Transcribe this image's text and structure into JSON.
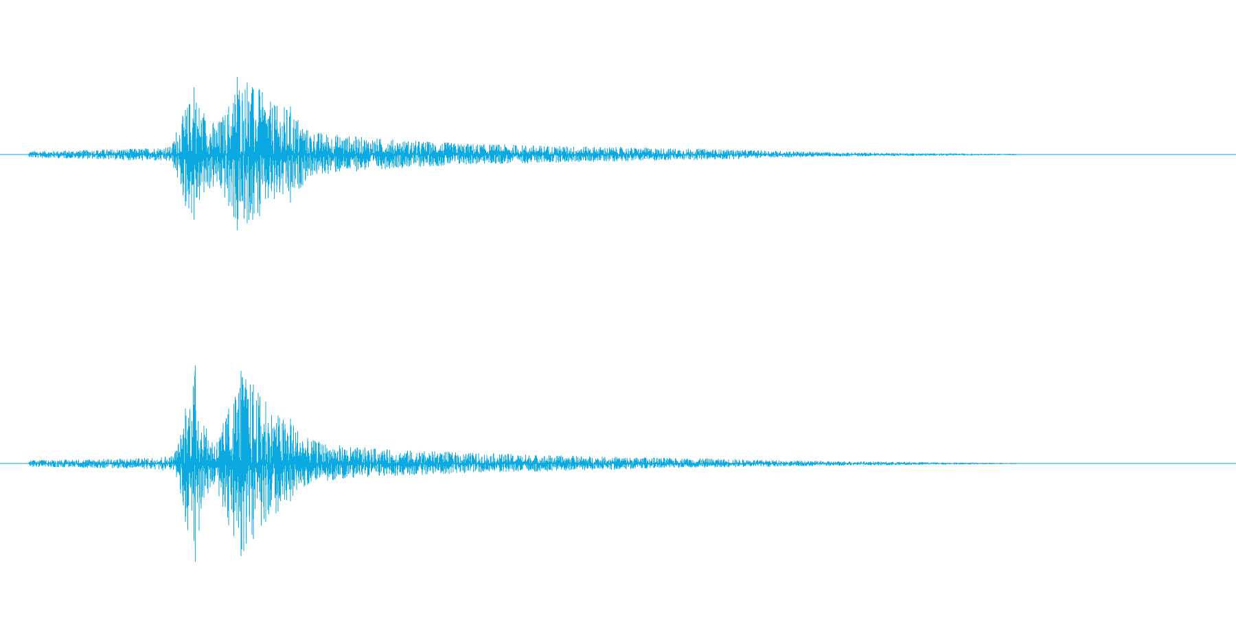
{
  "waveform": {
    "color": "#0aa9e1",
    "channels": [
      {
        "name": "channel-1",
        "envelope": [
          {
            "t": 0.0,
            "pos": 0.0,
            "neg": 0.0
          },
          {
            "t": 0.023,
            "pos": 0.0,
            "neg": 0.0
          },
          {
            "t": 0.024,
            "pos": 0.05,
            "neg": 0.05
          },
          {
            "t": 0.06,
            "pos": 0.06,
            "neg": 0.06
          },
          {
            "t": 0.09,
            "pos": 0.08,
            "neg": 0.08
          },
          {
            "t": 0.115,
            "pos": 0.09,
            "neg": 0.09
          },
          {
            "t": 0.139,
            "pos": 0.12,
            "neg": 0.11
          },
          {
            "t": 0.142,
            "pos": 0.35,
            "neg": 0.3
          },
          {
            "t": 0.15,
            "pos": 0.65,
            "neg": 0.75
          },
          {
            "t": 0.157,
            "pos": 0.98,
            "neg": 0.95
          },
          {
            "t": 0.165,
            "pos": 0.6,
            "neg": 0.55
          },
          {
            "t": 0.175,
            "pos": 0.45,
            "neg": 0.5
          },
          {
            "t": 0.185,
            "pos": 0.7,
            "neg": 0.75
          },
          {
            "t": 0.192,
            "pos": 1.13,
            "neg": 1.1
          },
          {
            "t": 0.2,
            "pos": 1.05,
            "neg": 1.0
          },
          {
            "t": 0.21,
            "pos": 0.95,
            "neg": 0.9
          },
          {
            "t": 0.222,
            "pos": 0.72,
            "neg": 0.65
          },
          {
            "t": 0.235,
            "pos": 0.7,
            "neg": 0.7
          },
          {
            "t": 0.25,
            "pos": 0.35,
            "neg": 0.33
          },
          {
            "t": 0.28,
            "pos": 0.28,
            "neg": 0.26
          },
          {
            "t": 0.32,
            "pos": 0.22,
            "neg": 0.2
          },
          {
            "t": 0.38,
            "pos": 0.16,
            "neg": 0.15
          },
          {
            "t": 0.45,
            "pos": 0.13,
            "neg": 0.12
          },
          {
            "t": 0.52,
            "pos": 0.1,
            "neg": 0.09
          },
          {
            "t": 0.58,
            "pos": 0.08,
            "neg": 0.08
          },
          {
            "t": 0.62,
            "pos": 0.06,
            "neg": 0.05
          },
          {
            "t": 0.68,
            "pos": 0.03,
            "neg": 0.03
          },
          {
            "t": 0.75,
            "pos": 0.02,
            "neg": 0.02
          },
          {
            "t": 0.82,
            "pos": 0.01,
            "neg": 0.01
          },
          {
            "t": 0.83,
            "pos": 0.0,
            "neg": 0.0
          },
          {
            "t": 1.0,
            "pos": 0.0,
            "neg": 0.0
          }
        ]
      },
      {
        "name": "channel-2",
        "envelope": [
          {
            "t": 0.0,
            "pos": 0.0,
            "neg": 0.0
          },
          {
            "t": 0.023,
            "pos": 0.0,
            "neg": 0.0
          },
          {
            "t": 0.024,
            "pos": 0.05,
            "neg": 0.05
          },
          {
            "t": 0.06,
            "pos": 0.06,
            "neg": 0.06
          },
          {
            "t": 0.09,
            "pos": 0.07,
            "neg": 0.07
          },
          {
            "t": 0.115,
            "pos": 0.08,
            "neg": 0.08
          },
          {
            "t": 0.14,
            "pos": 0.12,
            "neg": 0.12
          },
          {
            "t": 0.145,
            "pos": 0.35,
            "neg": 0.35
          },
          {
            "t": 0.15,
            "pos": 0.8,
            "neg": 0.85
          },
          {
            "t": 0.158,
            "pos": 1.43,
            "neg": 1.43
          },
          {
            "t": 0.165,
            "pos": 0.55,
            "neg": 0.5
          },
          {
            "t": 0.175,
            "pos": 0.35,
            "neg": 0.4
          },
          {
            "t": 0.185,
            "pos": 0.8,
            "neg": 0.9
          },
          {
            "t": 0.195,
            "pos": 1.35,
            "neg": 1.35
          },
          {
            "t": 0.205,
            "pos": 1.15,
            "neg": 1.1
          },
          {
            "t": 0.215,
            "pos": 0.9,
            "neg": 0.85
          },
          {
            "t": 0.225,
            "pos": 0.7,
            "neg": 0.7
          },
          {
            "t": 0.235,
            "pos": 0.65,
            "neg": 0.55
          },
          {
            "t": 0.25,
            "pos": 0.35,
            "neg": 0.3
          },
          {
            "t": 0.28,
            "pos": 0.25,
            "neg": 0.22
          },
          {
            "t": 0.32,
            "pos": 0.2,
            "neg": 0.18
          },
          {
            "t": 0.38,
            "pos": 0.16,
            "neg": 0.14
          },
          {
            "t": 0.45,
            "pos": 0.12,
            "neg": 0.11
          },
          {
            "t": 0.52,
            "pos": 0.09,
            "neg": 0.08
          },
          {
            "t": 0.58,
            "pos": 0.07,
            "neg": 0.06
          },
          {
            "t": 0.65,
            "pos": 0.04,
            "neg": 0.04
          },
          {
            "t": 0.75,
            "pos": 0.02,
            "neg": 0.02
          },
          {
            "t": 0.82,
            "pos": 0.01,
            "neg": 0.01
          },
          {
            "t": 0.83,
            "pos": 0.0,
            "neg": 0.0
          },
          {
            "t": 1.0,
            "pos": 0.0,
            "neg": 0.0
          }
        ]
      }
    ]
  }
}
